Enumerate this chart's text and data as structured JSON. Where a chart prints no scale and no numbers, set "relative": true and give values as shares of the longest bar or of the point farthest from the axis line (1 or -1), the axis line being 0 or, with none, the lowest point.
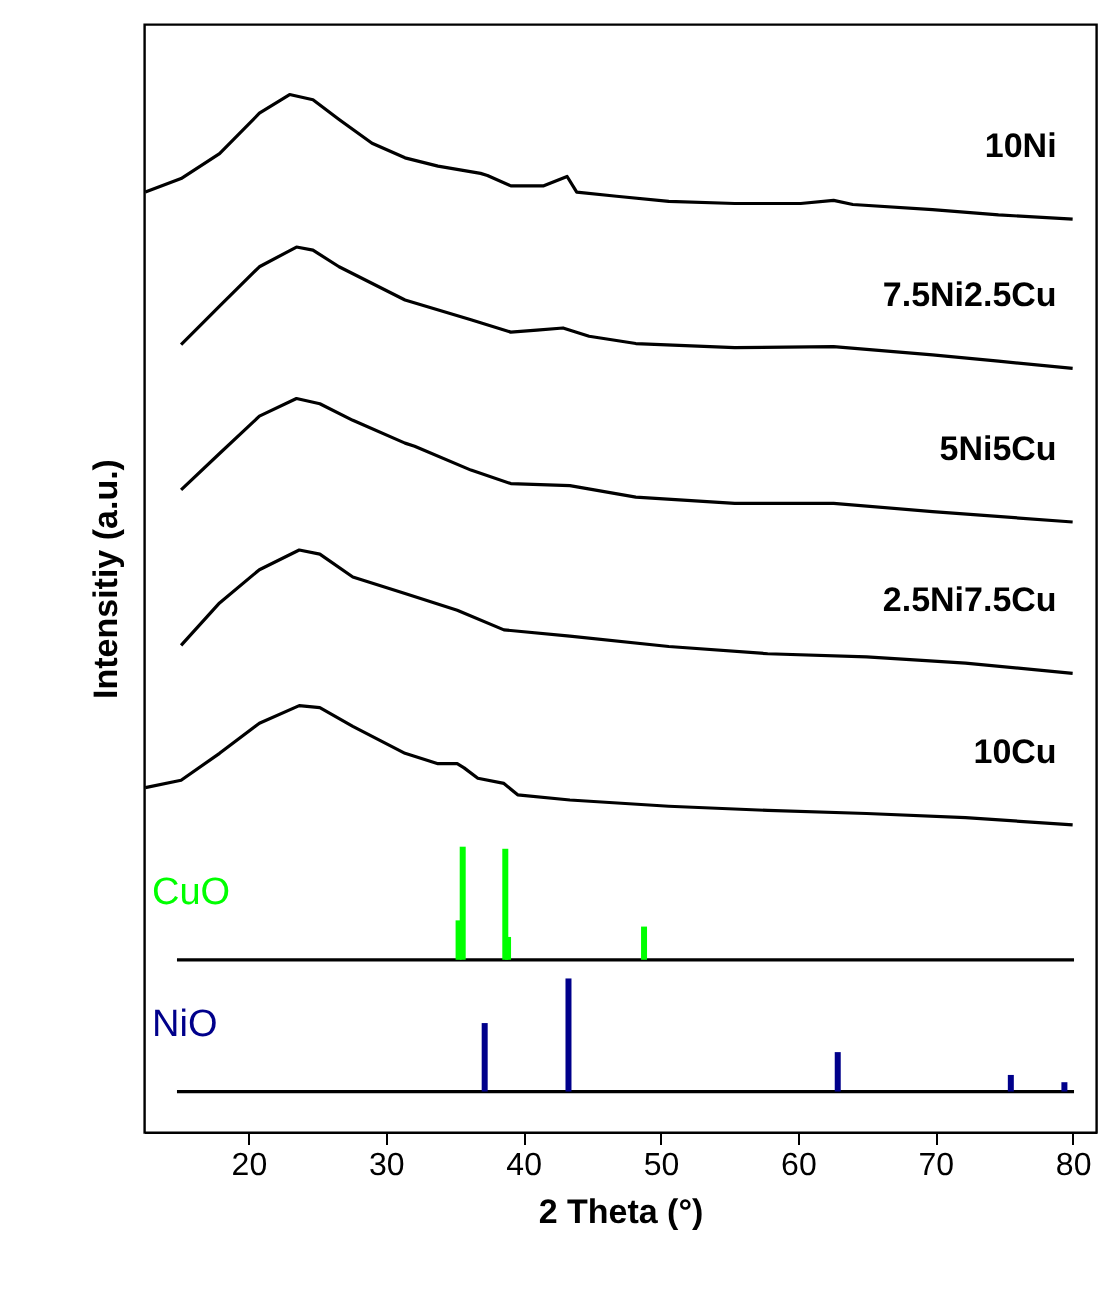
{
  "chart_data": {
    "type": "line",
    "xlabel": "2 Theta (°)",
    "ylabel": "Intensitiy (a.u.)",
    "relative": true,
    "xlim": [
      12.4,
      81.7
    ],
    "xticks": [
      20,
      30,
      40,
      50,
      60,
      70,
      80
    ],
    "grid": false,
    "series": [
      {
        "name": "10Ni",
        "color": "#000000",
        "x": [
          12.5,
          15.1,
          17.9,
          20.8,
          23.0,
          24.7,
          26.6,
          29.0,
          31.4,
          33.8,
          36.9,
          37.4,
          39.1,
          41.5,
          43.2,
          43.9,
          46.8,
          50.6,
          55.4,
          60.2,
          62.6,
          64.0,
          69.8,
          74.6,
          80.0
        ],
        "values": [
          0.906,
          0.919,
          0.943,
          0.982,
          1,
          0.995,
          0.976,
          0.953,
          0.939,
          0.931,
          0.924,
          0.922,
          0.912,
          0.912,
          0.921,
          0.906,
          0.902,
          0.897,
          0.895,
          0.895,
          0.898,
          0.894,
          0.889,
          0.884,
          0.88
        ]
      },
      {
        "name": "7.5Ni2.5Cu",
        "color": "#000000",
        "x": [
          15.1,
          17.9,
          20.8,
          23.5,
          24.7,
          26.6,
          31.4,
          36.2,
          39.1,
          41.0,
          42.9,
          44.8,
          48.2,
          55.4,
          62.6,
          69.8,
          74.6,
          80.0
        ],
        "values": [
          0.759,
          0.796,
          0.834,
          0.853,
          0.85,
          0.834,
          0.802,
          0.783,
          0.771,
          0.773,
          0.775,
          0.767,
          0.76,
          0.756,
          0.757,
          0.749,
          0.743,
          0.736
        ]
      },
      {
        "name": "5Ni5Cu",
        "color": "#000000",
        "x": [
          15.1,
          17.9,
          20.8,
          23.5,
          25.2,
          27.6,
          31.4,
          32.1,
          36.2,
          39.1,
          43.4,
          48.2,
          55.4,
          62.6,
          69.8,
          80.0
        ],
        "values": [
          0.619,
          0.654,
          0.69,
          0.707,
          0.702,
          0.686,
          0.664,
          0.661,
          0.638,
          0.625,
          0.623,
          0.612,
          0.606,
          0.606,
          0.598,
          0.588
        ]
      },
      {
        "name": "2.5Ni7.5Cu",
        "color": "#000000",
        "x": [
          15.1,
          17.9,
          20.8,
          23.7,
          25.2,
          27.6,
          31.4,
          35.2,
          38.6,
          43.4,
          50.6,
          57.8,
          65.0,
          72.2,
          80.0
        ],
        "values": [
          0.469,
          0.51,
          0.542,
          0.561,
          0.557,
          0.535,
          0.519,
          0.503,
          0.484,
          0.478,
          0.468,
          0.461,
          0.458,
          0.452,
          0.442
        ]
      },
      {
        "name": "10Cu",
        "color": "#000000",
        "x": [
          12.5,
          15.1,
          17.9,
          20.8,
          23.7,
          25.2,
          27.6,
          31.4,
          33.8,
          35.2,
          35.7,
          36.7,
          38.6,
          39.6,
          43.4,
          50.6,
          57.8,
          65.0,
          72.2,
          80.0
        ],
        "values": [
          0.332,
          0.339,
          0.365,
          0.394,
          0.411,
          0.409,
          0.391,
          0.365,
          0.355,
          0.355,
          0.351,
          0.341,
          0.336,
          0.325,
          0.32,
          0.314,
          0.31,
          0.307,
          0.303,
          0.296
        ]
      },
      {
        "color": "#000000",
        "x": [
          14.8,
          80.1
        ],
        "values": [
          0.166,
          0.166
        ]
      },
      {
        "name": "CuO",
        "color": "#00ff00",
        "x": [
          35.3,
          35.3,
          null,
          35.6,
          35.6,
          null,
          38.7,
          38.7,
          null,
          38.9,
          38.9,
          null,
          48.8,
          48.8
        ],
        "values": [
          0.166,
          0.204,
          null,
          0.166,
          0.275,
          null,
          0.166,
          0.273,
          null,
          0.166,
          0.188,
          null,
          0.166,
          0.198
        ]
      },
      {
        "color": "#000000",
        "x": [
          14.8,
          80.1
        ],
        "values": [
          0.039,
          0.039
        ]
      },
      {
        "name": "NiO",
        "color": "#00008b",
        "x": [
          37.2,
          37.2,
          null,
          43.3,
          43.3,
          null,
          62.9,
          62.9,
          null,
          75.5,
          75.5,
          null,
          79.4,
          79.4
        ],
        "values": [
          0.039,
          0.105,
          null,
          0.039,
          0.148,
          null,
          0.039,
          0.077,
          null,
          0.039,
          0.055,
          null,
          0.039,
          0.048
        ]
      }
    ]
  }
}
